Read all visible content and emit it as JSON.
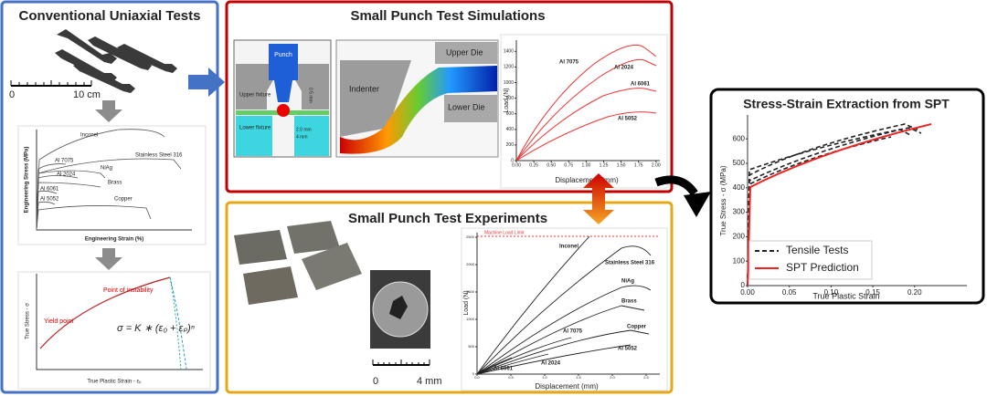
{
  "panels": {
    "uniaxial": {
      "title": "Conventional Uniaxial Tests",
      "scale": [
        "0",
        "10 cm"
      ],
      "eng_chart": {
        "ylabel": "Engineering Stress (MPa)",
        "xlabel": "Engineering Strain (%)",
        "curves": [
          "Inconel",
          "Stainless Steel 316",
          "Al 7075",
          "NiAg",
          "Al 2024",
          "Brass",
          "Al 6061",
          "Al 5052",
          "Copper"
        ]
      },
      "true_chart": {
        "ylabel": "True Stress - σ",
        "xlabel": "True Plastic Strain - εₚ",
        "instability": "Point of instability",
        "yield": "Yield point",
        "formula": "σ = K ∗ (ε₀ + εₚ)ⁿ"
      }
    },
    "simulations": {
      "title": "Small Punch Test Simulations",
      "schematic": {
        "punch": "Punch",
        "upper": "Upper fixture",
        "lower": "Lower fixture",
        "gap": "0.5 mm",
        "hole": "2.0 mm",
        "die": "4 mm"
      },
      "fem": {
        "indenter": "Indenter",
        "upper_die": "Upper Die",
        "lower_die": "Lower Die"
      },
      "chart": {
        "ylabel": "Load (N)",
        "xlabel": "Displacement (mm)",
        "yticks": [
          "0",
          "200",
          "400",
          "600",
          "800",
          "1000",
          "1200",
          "1400"
        ],
        "xticks": [
          "0.00",
          "0.25",
          "0.50",
          "0.75",
          "1.00",
          "1.25",
          "1.50",
          "1.75",
          "2.00"
        ],
        "curves": [
          "Al 7075",
          "Al 2024",
          "Al 6061",
          "Al 5052"
        ]
      }
    },
    "experiments": {
      "title": "Small Punch Test Experiments",
      "scale": [
        "0",
        "4 mm"
      ],
      "chart": {
        "ylabel": "Load (N)",
        "xlabel": "Displacement (mm)",
        "limit": "Machine Load Limit",
        "yticks": [
          "0",
          "500",
          "1000",
          "1500",
          "2000",
          "2500"
        ],
        "xticks": [
          "0.0",
          "0.5",
          "1.0",
          "1.5",
          "2.0",
          "2.5"
        ],
        "curves": [
          "Inconel",
          "Stainless Steel 316",
          "NiAg",
          "Brass",
          "Copper",
          "Al 7075",
          "Al 5052",
          "Al 6061",
          "Al 2024"
        ]
      }
    },
    "extraction": {
      "title": "Stress-Strain Extraction from SPT",
      "chart": {
        "ylabel": "True Stress - σ (MPa)",
        "xlabel": "True Plastic Strain",
        "yticks": [
          "0",
          "100",
          "200",
          "300",
          "400",
          "500",
          "600"
        ],
        "xticks": [
          "0.00",
          "0.05",
          "0.10",
          "0.15",
          "0.20"
        ],
        "legend": [
          "Tensile Tests",
          "SPT Prediction"
        ]
      }
    }
  }
}
